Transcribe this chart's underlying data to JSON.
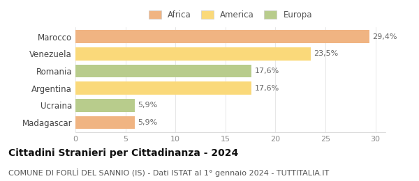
{
  "categories": [
    "Marocco",
    "Venezuela",
    "Romania",
    "Argentina",
    "Ucraina",
    "Madagascar"
  ],
  "values": [
    29.4,
    23.5,
    17.6,
    17.6,
    5.9,
    5.9
  ],
  "labels": [
    "29,4%",
    "23,5%",
    "17,6%",
    "17,6%",
    "5,9%",
    "5,9%"
  ],
  "colors": [
    "#f0b482",
    "#fad97a",
    "#b8cc8c",
    "#fad97a",
    "#b8cc8c",
    "#f0b482"
  ],
  "continent": [
    "Africa",
    "America",
    "Europa",
    "America",
    "Europa",
    "Africa"
  ],
  "legend_items": [
    {
      "label": "Africa",
      "color": "#f0b482"
    },
    {
      "label": "America",
      "color": "#fad97a"
    },
    {
      "label": "Europa",
      "color": "#b8cc8c"
    }
  ],
  "xlim": [
    0,
    31
  ],
  "xticks": [
    0,
    5,
    10,
    15,
    20,
    25,
    30
  ],
  "title": "Cittadini Stranieri per Cittadinanza - 2024",
  "subtitle": "COMUNE DI FORLÌ DEL SANNIO (IS) - Dati ISTAT al 1° gennaio 2024 - TUTTITALIA.IT",
  "title_fontsize": 10,
  "subtitle_fontsize": 8,
  "background_color": "#ffffff",
  "bar_height": 0.75
}
